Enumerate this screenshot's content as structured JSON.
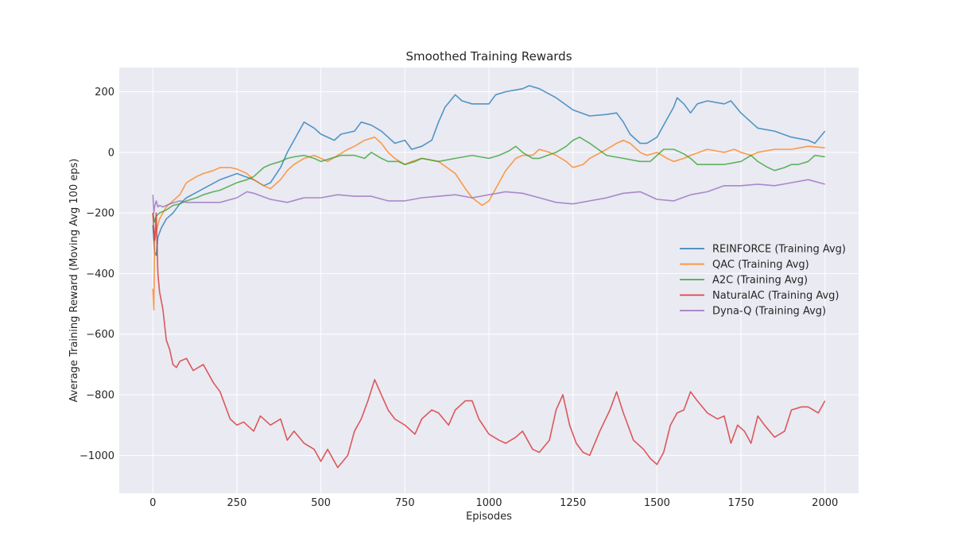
{
  "chart_data": {
    "type": "line",
    "title": "Smoothed Training Rewards",
    "xlabel": "Episodes",
    "ylabel": "Average Training Reward (Moving Avg 100 eps)",
    "xlim": [
      -100,
      2100
    ],
    "ylim": [
      -1125,
      280
    ],
    "xticks": [
      0,
      250,
      500,
      750,
      1000,
      1250,
      1500,
      1750,
      2000
    ],
    "yticks": [
      -1000,
      -800,
      -600,
      -400,
      -200,
      0,
      200
    ],
    "grid": true,
    "legend_position": "center-right",
    "background": "#eaeaf2",
    "series": [
      {
        "name": "REINFORCE (Training Avg)",
        "color": "#1f77b4",
        "x": [
          0,
          5,
          10,
          15,
          25,
          40,
          60,
          80,
          100,
          150,
          200,
          250,
          300,
          330,
          350,
          380,
          400,
          420,
          450,
          480,
          500,
          540,
          560,
          600,
          620,
          650,
          680,
          700,
          720,
          750,
          770,
          800,
          830,
          850,
          870,
          900,
          920,
          950,
          1000,
          1020,
          1050,
          1100,
          1120,
          1150,
          1200,
          1250,
          1300,
          1350,
          1380,
          1400,
          1420,
          1450,
          1470,
          1500,
          1520,
          1550,
          1560,
          1580,
          1600,
          1620,
          1650,
          1700,
          1720,
          1750,
          1780,
          1800,
          1850,
          1900,
          1950,
          1970,
          2000
        ],
        "values": [
          -240,
          -330,
          -340,
          -280,
          -250,
          -220,
          -200,
          -170,
          -150,
          -120,
          -90,
          -70,
          -90,
          -110,
          -100,
          -50,
          0,
          40,
          100,
          80,
          60,
          40,
          60,
          70,
          100,
          90,
          70,
          50,
          30,
          40,
          10,
          20,
          40,
          100,
          150,
          190,
          170,
          160,
          160,
          190,
          200,
          210,
          220,
          210,
          180,
          140,
          120,
          125,
          130,
          100,
          60,
          30,
          30,
          50,
          90,
          150,
          180,
          160,
          130,
          160,
          170,
          160,
          170,
          130,
          100,
          80,
          70,
          50,
          40,
          30,
          70
        ]
      },
      {
        "name": "QAC (Training Avg)",
        "color": "#ff7f0e",
        "x": [
          0,
          3,
          5,
          10,
          20,
          40,
          60,
          80,
          100,
          130,
          150,
          180,
          200,
          230,
          250,
          280,
          300,
          330,
          350,
          380,
          400,
          420,
          450,
          480,
          500,
          520,
          550,
          580,
          600,
          630,
          660,
          680,
          700,
          720,
          750,
          770,
          800,
          850,
          900,
          930,
          950,
          980,
          1000,
          1020,
          1050,
          1080,
          1100,
          1130,
          1150,
          1180,
          1200,
          1230,
          1250,
          1280,
          1300,
          1350,
          1380,
          1400,
          1420,
          1450,
          1470,
          1500,
          1530,
          1550,
          1580,
          1600,
          1650,
          1700,
          1730,
          1750,
          1780,
          1800,
          1850,
          1900,
          1950,
          2000
        ],
        "values": [
          -450,
          -520,
          -300,
          -260,
          -220,
          -180,
          -160,
          -140,
          -100,
          -80,
          -70,
          -60,
          -50,
          -50,
          -55,
          -70,
          -90,
          -110,
          -120,
          -90,
          -60,
          -40,
          -20,
          -10,
          -20,
          -30,
          -10,
          10,
          20,
          40,
          50,
          30,
          0,
          -20,
          -40,
          -30,
          -20,
          -30,
          -70,
          -120,
          -150,
          -175,
          -160,
          -120,
          -60,
          -20,
          -10,
          -10,
          10,
          0,
          -10,
          -30,
          -50,
          -40,
          -20,
          10,
          30,
          40,
          30,
          0,
          -10,
          0,
          -20,
          -30,
          -20,
          -10,
          10,
          0,
          10,
          0,
          -10,
          0,
          10,
          10,
          20,
          15
        ]
      },
      {
        "name": "A2C (Training Avg)",
        "color": "#2ca02c",
        "x": [
          0,
          5,
          10,
          20,
          40,
          60,
          80,
          100,
          130,
          150,
          180,
          200,
          230,
          250,
          280,
          300,
          330,
          350,
          380,
          400,
          420,
          450,
          480,
          500,
          530,
          560,
          600,
          630,
          650,
          680,
          700,
          730,
          750,
          780,
          800,
          850,
          900,
          950,
          1000,
          1030,
          1060,
          1080,
          1100,
          1130,
          1150,
          1200,
          1230,
          1250,
          1270,
          1300,
          1350,
          1400,
          1450,
          1480,
          1500,
          1520,
          1550,
          1580,
          1600,
          1620,
          1650,
          1700,
          1750,
          1780,
          1800,
          1830,
          1850,
          1880,
          1900,
          1920,
          1950,
          1970,
          2000
        ],
        "values": [
          -200,
          -230,
          -210,
          -200,
          -190,
          -175,
          -170,
          -160,
          -150,
          -140,
          -130,
          -125,
          -110,
          -100,
          -90,
          -80,
          -50,
          -40,
          -30,
          -20,
          -15,
          -10,
          -20,
          -30,
          -20,
          -10,
          -10,
          -20,
          0,
          -20,
          -30,
          -30,
          -40,
          -30,
          -20,
          -30,
          -20,
          -10,
          -20,
          -10,
          5,
          20,
          0,
          -20,
          -20,
          0,
          20,
          40,
          50,
          30,
          -10,
          -20,
          -30,
          -30,
          -10,
          10,
          10,
          -5,
          -20,
          -40,
          -40,
          -40,
          -30,
          -10,
          -30,
          -50,
          -60,
          -50,
          -40,
          -40,
          -30,
          -10,
          -15
        ]
      },
      {
        "name": "NaturalAC (Training Avg)",
        "color": "#d62728",
        "x": [
          0,
          3,
          5,
          8,
          10,
          15,
          20,
          30,
          40,
          50,
          60,
          70,
          80,
          100,
          120,
          150,
          180,
          200,
          230,
          250,
          270,
          300,
          320,
          350,
          380,
          400,
          420,
          450,
          480,
          500,
          520,
          550,
          580,
          600,
          620,
          640,
          660,
          680,
          700,
          720,
          750,
          780,
          800,
          830,
          850,
          880,
          900,
          930,
          950,
          970,
          1000,
          1030,
          1050,
          1080,
          1100,
          1130,
          1150,
          1180,
          1200,
          1220,
          1240,
          1260,
          1280,
          1300,
          1330,
          1360,
          1380,
          1400,
          1430,
          1460,
          1480,
          1500,
          1520,
          1540,
          1560,
          1580,
          1600,
          1620,
          1650,
          1680,
          1700,
          1720,
          1740,
          1760,
          1780,
          1800,
          1820,
          1850,
          1880,
          1900,
          1930,
          1950,
          1980,
          2000
        ],
        "values": [
          -200,
          -260,
          -290,
          -240,
          -200,
          -400,
          -460,
          -520,
          -620,
          -650,
          -700,
          -710,
          -690,
          -680,
          -720,
          -700,
          -760,
          -790,
          -880,
          -900,
          -890,
          -920,
          -870,
          -900,
          -880,
          -950,
          -920,
          -960,
          -980,
          -1020,
          -980,
          -1040,
          -1000,
          -920,
          -880,
          -820,
          -750,
          -800,
          -850,
          -880,
          -900,
          -930,
          -880,
          -850,
          -860,
          -900,
          -850,
          -820,
          -820,
          -880,
          -930,
          -950,
          -960,
          -940,
          -920,
          -980,
          -990,
          -950,
          -850,
          -800,
          -900,
          -960,
          -990,
          -1000,
          -920,
          -850,
          -790,
          -860,
          -950,
          -980,
          -1010,
          -1030,
          -990,
          -900,
          -860,
          -850,
          -790,
          -820,
          -860,
          -880,
          -870,
          -960,
          -900,
          -920,
          -960,
          -870,
          -900,
          -940,
          -920,
          -850,
          -840,
          -840,
          -860,
          -820
        ]
      },
      {
        "name": "Dyna-Q (Training Avg)",
        "color": "#9467bd",
        "x": [
          0,
          3,
          5,
          10,
          15,
          20,
          30,
          50,
          80,
          100,
          150,
          200,
          250,
          280,
          300,
          350,
          400,
          450,
          500,
          550,
          600,
          650,
          700,
          750,
          800,
          850,
          900,
          950,
          1000,
          1050,
          1100,
          1150,
          1200,
          1250,
          1300,
          1350,
          1400,
          1450,
          1500,
          1550,
          1600,
          1650,
          1700,
          1750,
          1800,
          1850,
          1900,
          1950,
          2000
        ],
        "values": [
          -140,
          -200,
          -180,
          -160,
          -180,
          -175,
          -180,
          -170,
          -160,
          -165,
          -165,
          -165,
          -150,
          -130,
          -135,
          -155,
          -165,
          -150,
          -150,
          -140,
          -145,
          -145,
          -160,
          -160,
          -150,
          -145,
          -140,
          -150,
          -140,
          -130,
          -135,
          -150,
          -165,
          -170,
          -160,
          -150,
          -135,
          -130,
          -155,
          -160,
          -140,
          -130,
          -110,
          -110,
          -105,
          -110,
          -100,
          -90,
          -105
        ]
      }
    ]
  }
}
